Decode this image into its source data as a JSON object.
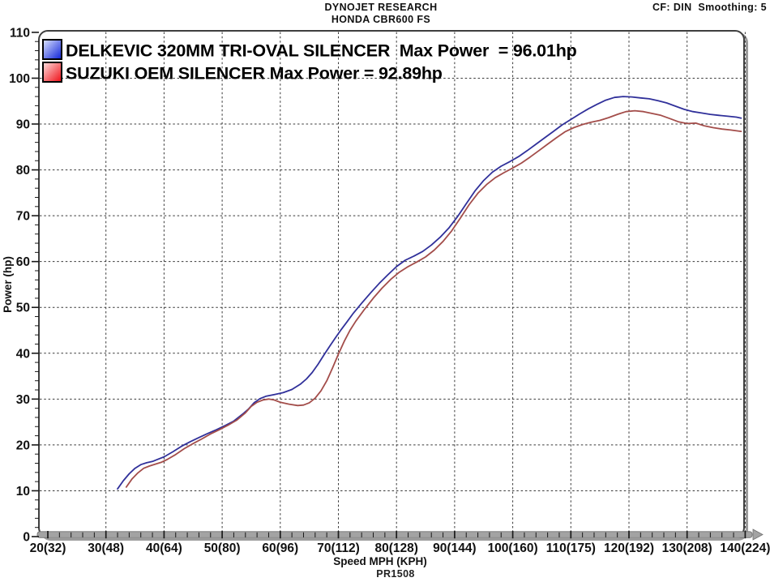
{
  "header": {
    "brand": "DYNOJET RESEARCH",
    "vehicle": "HONDA CBR600 FS",
    "settings": "CF: DIN  Smoothing: 5"
  },
  "footer": {
    "run_code": "PR1508"
  },
  "chart_data": {
    "type": "line",
    "title": "DYNOJET RESEARCH",
    "subtitle": "HONDA CBR600 FS",
    "xlabel": "Speed MPH (KPH)",
    "ylabel": "Power (hp)",
    "xlim": [
      20,
      140
    ],
    "ylim": [
      0,
      110
    ],
    "x_tick_mph": [
      20,
      30,
      40,
      50,
      60,
      70,
      80,
      90,
      100,
      110,
      120,
      130,
      140
    ],
    "x_tick_labels": [
      "20(32)",
      "30(48)",
      "40(64)",
      "50(80)",
      "60(96)",
      "70(112)",
      "80(128)",
      "90(144)",
      "100(160)",
      "110(175)",
      "120(192)",
      "130(208)",
      "140(224)"
    ],
    "y_ticks": [
      0,
      10,
      20,
      30,
      40,
      50,
      60,
      70,
      80,
      90,
      100,
      110
    ],
    "x_minor_step_mph": 2,
    "y_minor_step_hp": 2,
    "grid": "dashed both axes at major ticks",
    "grid_color": "#383838",
    "legend_position": "top-left inside plot",
    "series": [
      {
        "name": "DELKEVIC 320MM TRI-OVAL SILENCER",
        "legend_label": "DELKEVIC 320MM TRI-OVAL SILENCER  Max Power  = 96.01hp",
        "max_power_hp": 96.01,
        "color": "#30309a",
        "swatch": {
          "from": "#dfe7ff",
          "to": "#0b1fd8"
        },
        "points": [
          [
            32,
            10.4
          ],
          [
            33,
            12.2
          ],
          [
            34,
            13.7
          ],
          [
            35,
            14.9
          ],
          [
            36,
            15.7
          ],
          [
            37,
            16.1
          ],
          [
            38,
            16.4
          ],
          [
            39,
            16.9
          ],
          [
            40,
            17.4
          ],
          [
            41.5,
            18.5
          ],
          [
            43,
            19.7
          ],
          [
            44.5,
            20.7
          ],
          [
            46,
            21.6
          ],
          [
            47.5,
            22.5
          ],
          [
            49,
            23.3
          ],
          [
            50.5,
            24.2
          ],
          [
            52,
            25.2
          ],
          [
            53.5,
            26.7
          ],
          [
            54.5,
            27.8
          ],
          [
            55.5,
            29.2
          ],
          [
            56.5,
            30.1
          ],
          [
            57.5,
            30.6
          ],
          [
            59,
            31.0
          ],
          [
            60.5,
            31.4
          ],
          [
            62,
            32.1
          ],
          [
            63.5,
            33.3
          ],
          [
            64.5,
            34.4
          ],
          [
            65.5,
            35.8
          ],
          [
            66.5,
            37.6
          ],
          [
            67.5,
            39.6
          ],
          [
            68.5,
            41.5
          ],
          [
            69.5,
            43.4
          ],
          [
            70.5,
            45.2
          ],
          [
            71.5,
            46.9
          ],
          [
            72.5,
            48.6
          ],
          [
            74,
            50.9
          ],
          [
            75.5,
            53.1
          ],
          [
            77,
            55.2
          ],
          [
            78.5,
            57.1
          ],
          [
            80,
            58.9
          ],
          [
            81.5,
            60.3
          ],
          [
            83,
            61.2
          ],
          [
            84.5,
            62.2
          ],
          [
            86,
            63.6
          ],
          [
            87.5,
            65.3
          ],
          [
            89,
            67.3
          ],
          [
            90.5,
            69.8
          ],
          [
            92,
            72.6
          ],
          [
            93.5,
            75.4
          ],
          [
            95,
            77.7
          ],
          [
            96.5,
            79.5
          ],
          [
            98,
            80.8
          ],
          [
            99.5,
            81.8
          ],
          [
            101,
            82.9
          ],
          [
            102.5,
            84.2
          ],
          [
            104,
            85.6
          ],
          [
            105.5,
            87.0
          ],
          [
            107,
            88.4
          ],
          [
            108.5,
            89.8
          ],
          [
            110,
            91.0
          ],
          [
            111.5,
            92.2
          ],
          [
            113,
            93.3
          ],
          [
            114.5,
            94.3
          ],
          [
            116,
            95.2
          ],
          [
            117.5,
            95.8
          ],
          [
            119,
            96.0
          ],
          [
            120.5,
            95.9
          ],
          [
            122,
            95.7
          ],
          [
            123.5,
            95.5
          ],
          [
            125,
            95.1
          ],
          [
            126.5,
            94.6
          ],
          [
            128,
            93.9
          ],
          [
            129.5,
            93.2
          ],
          [
            131,
            92.7
          ],
          [
            132.5,
            92.4
          ],
          [
            134,
            92.1
          ],
          [
            135.5,
            91.9
          ],
          [
            137,
            91.7
          ],
          [
            138.5,
            91.5
          ],
          [
            139.3,
            91.3
          ]
        ]
      },
      {
        "name": "SUZUKI OEM SILENCER",
        "legend_label": "SUZUKI OEM SILENCER Max Power = 92.89hp",
        "max_power_hp": 92.89,
        "color": "#a34d4a",
        "swatch": {
          "from": "#ffe2e2",
          "to": "#ee0a12"
        },
        "points": [
          [
            33.5,
            10.8
          ],
          [
            34.5,
            12.6
          ],
          [
            35.5,
            13.9
          ],
          [
            36.5,
            14.9
          ],
          [
            37.5,
            15.4
          ],
          [
            38.5,
            15.8
          ],
          [
            39.5,
            16.2
          ],
          [
            40.5,
            16.8
          ],
          [
            42,
            17.9
          ],
          [
            43.5,
            19.2
          ],
          [
            45,
            20.3
          ],
          [
            46.5,
            21.3
          ],
          [
            48,
            22.4
          ],
          [
            49.5,
            23.3
          ],
          [
            51,
            24.3
          ],
          [
            52.5,
            25.4
          ],
          [
            54,
            27.0
          ],
          [
            55,
            28.4
          ],
          [
            56,
            29.3
          ],
          [
            57,
            29.8
          ],
          [
            58,
            30.0
          ],
          [
            59,
            29.8
          ],
          [
            60,
            29.3
          ],
          [
            61.5,
            28.9
          ],
          [
            63,
            28.6
          ],
          [
            64,
            28.7
          ],
          [
            65,
            29.2
          ],
          [
            66,
            30.2
          ],
          [
            67,
            31.8
          ],
          [
            68,
            34.0
          ],
          [
            69,
            36.8
          ],
          [
            70,
            39.8
          ],
          [
            71,
            42.6
          ],
          [
            72,
            45.0
          ],
          [
            73,
            47.0
          ],
          [
            74.5,
            49.6
          ],
          [
            76,
            52.0
          ],
          [
            77.5,
            54.2
          ],
          [
            79,
            56.1
          ],
          [
            80.5,
            57.7
          ],
          [
            82,
            58.9
          ],
          [
            83.5,
            59.9
          ],
          [
            85,
            61.0
          ],
          [
            86.5,
            62.5
          ],
          [
            88,
            64.4
          ],
          [
            89.5,
            66.7
          ],
          [
            91,
            69.5
          ],
          [
            92.5,
            72.4
          ],
          [
            94,
            74.9
          ],
          [
            95.5,
            76.8
          ],
          [
            97,
            78.3
          ],
          [
            98.5,
            79.4
          ],
          [
            100,
            80.4
          ],
          [
            101.5,
            81.5
          ],
          [
            103,
            82.8
          ],
          [
            104.5,
            84.2
          ],
          [
            106,
            85.6
          ],
          [
            107.5,
            87.0
          ],
          [
            109,
            88.3
          ],
          [
            110.5,
            89.2
          ],
          [
            112,
            89.9
          ],
          [
            113.5,
            90.4
          ],
          [
            115,
            90.8
          ],
          [
            116.5,
            91.4
          ],
          [
            118,
            92.1
          ],
          [
            119.5,
            92.7
          ],
          [
            121,
            92.9
          ],
          [
            122.5,
            92.7
          ],
          [
            124,
            92.3
          ],
          [
            125.5,
            91.9
          ],
          [
            127,
            91.2
          ],
          [
            128.5,
            90.5
          ],
          [
            130,
            90.1
          ],
          [
            131.5,
            90.2
          ],
          [
            133,
            89.6
          ],
          [
            134.5,
            89.2
          ],
          [
            136,
            88.9
          ],
          [
            137.5,
            88.7
          ],
          [
            139.3,
            88.4
          ]
        ]
      }
    ]
  }
}
